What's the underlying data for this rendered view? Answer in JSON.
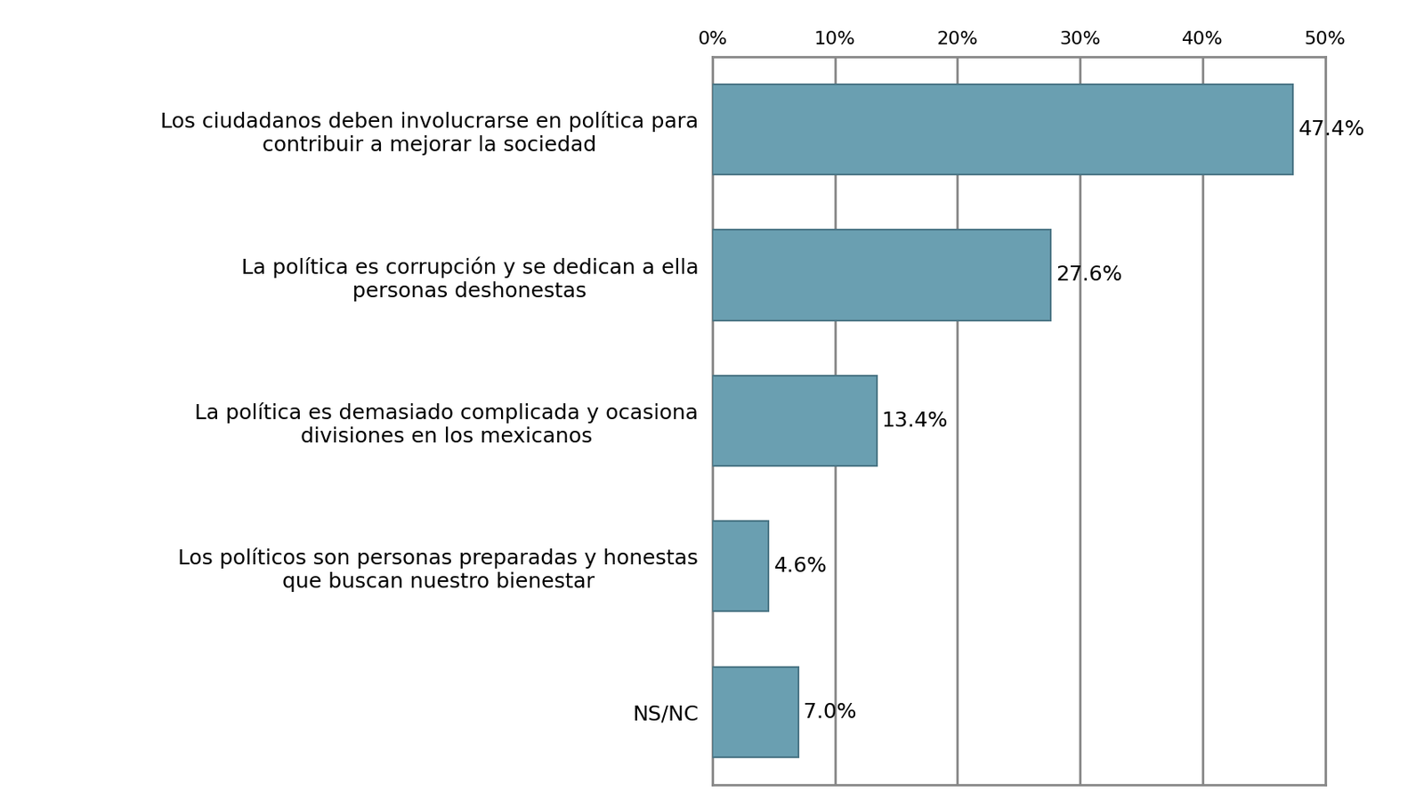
{
  "chart_data": {
    "type": "bar",
    "orientation": "horizontal",
    "categories": [
      "Los ciudadanos deben involucrarse en política para contribuir a mejorar la sociedad",
      "La política es corrupción y se dedican a ella personas deshonestas",
      "La política es demasiado complicada y ocasiona divisiones en los mexicanos",
      "Los políticos son personas preparadas y honestas que buscan nuestro bienestar",
      "NS/NC"
    ],
    "values": [
      47.4,
      27.6,
      13.4,
      4.6,
      7.0
    ],
    "value_labels": [
      "47.4%",
      "27.6%",
      "13.4%",
      "4.6%",
      "7.0%"
    ],
    "data_labels": true,
    "color": "#6a9fb1",
    "xlim": [
      0,
      50
    ],
    "xticks": [
      {
        "value": 0,
        "label": "0%"
      },
      {
        "value": 10,
        "label": "10%"
      },
      {
        "value": 20,
        "label": "20%"
      },
      {
        "value": 30,
        "label": "30%"
      },
      {
        "value": 40,
        "label": "40%"
      },
      {
        "value": 50,
        "label": "50%"
      }
    ],
    "grid": true
  }
}
